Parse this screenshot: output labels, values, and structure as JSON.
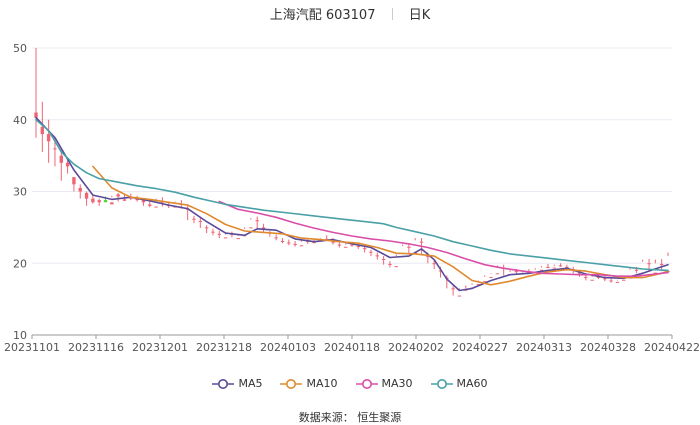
{
  "header": {
    "title": "上海汽配 603107",
    "period": "日K"
  },
  "source_label": "数据来源：  恒生聚源",
  "chart_data": {
    "type": "candlestick",
    "x_ticks": [
      "20231101",
      "20231116",
      "20231201",
      "20231218",
      "20240103",
      "20240118",
      "20240202",
      "20240227",
      "20240313",
      "20240328",
      "20240422"
    ],
    "y_ticks": [
      "10",
      "20",
      "30",
      "40",
      "50"
    ],
    "ylim": [
      10,
      50
    ],
    "grid": true,
    "legend_position": "bottom",
    "up_color": "#f06474",
    "down_color": "#57d03a",
    "candles": [
      [
        40.3,
        50.0,
        41.0,
        37.5
      ],
      [
        38.0,
        42.5,
        39.0,
        35.5
      ],
      [
        37.0,
        40.0,
        38.0,
        34.0
      ],
      [
        36.0,
        37.5,
        36.0,
        33.5
      ],
      [
        34.0,
        36.0,
        35.0,
        31.5
      ],
      [
        33.5,
        34.5,
        34.0,
        32.5
      ],
      [
        31.0,
        32.0,
        32.0,
        30.0
      ],
      [
        30.0,
        31.0,
        30.5,
        29.0
      ],
      [
        29.0,
        30.0,
        29.8,
        28.0
      ],
      [
        28.5,
        29.5,
        29.0,
        28.3
      ],
      [
        28.5,
        29.0,
        28.8,
        28.0
      ],
      [
        28.8,
        29.3,
        28.5,
        28.6
      ],
      [
        28.2,
        29.4,
        28.5,
        29.2
      ],
      [
        29.3,
        29.8,
        29.6,
        28.6
      ],
      [
        28.7,
        29.5,
        28.9,
        28.7
      ],
      [
        29.0,
        29.7,
        29.2,
        28.8
      ],
      [
        28.8,
        29.4,
        29.0,
        28.6
      ],
      [
        28.5,
        29.1,
        28.8,
        28.0
      ],
      [
        28.0,
        28.8,
        28.2,
        27.8
      ],
      [
        27.8,
        29.0,
        27.9,
        28.8
      ],
      [
        28.6,
        29.2,
        28.6,
        27.9
      ],
      [
        28.0,
        28.5,
        28.1,
        27.7
      ],
      [
        27.8,
        28.6,
        27.9,
        28.5
      ],
      [
        28.3,
        28.8,
        28.3,
        27.6
      ],
      [
        27.5,
        28.0,
        27.6,
        26.0
      ],
      [
        26.2,
        26.6,
        26.2,
        25.6
      ],
      [
        25.8,
        26.3,
        25.9,
        24.9
      ],
      [
        24.9,
        25.3,
        25.0,
        24.2
      ],
      [
        24.3,
        24.8,
        24.4,
        23.9
      ],
      [
        24.0,
        24.5,
        24.1,
        23.5
      ],
      [
        23.5,
        24.2,
        23.6,
        24.0
      ],
      [
        24.0,
        24.4,
        24.1,
        23.6
      ],
      [
        23.4,
        23.9,
        23.5,
        23.8
      ],
      [
        23.8,
        25.0,
        23.9,
        24.8
      ],
      [
        24.9,
        26.3,
        25.0,
        26.1
      ],
      [
        26.0,
        26.5,
        26.0,
        24.9
      ],
      [
        24.8,
        25.5,
        25.0,
        24.3
      ],
      [
        24.2,
        24.5,
        24.3,
        23.7
      ],
      [
        23.6,
        24.0,
        23.6,
        23.2
      ],
      [
        23.0,
        23.5,
        23.1,
        22.8
      ],
      [
        22.8,
        23.3,
        22.9,
        22.5
      ],
      [
        22.6,
        23.1,
        22.7,
        22.3
      ],
      [
        22.4,
        23.3,
        22.5,
        23.0
      ],
      [
        23.0,
        23.5,
        23.1,
        22.7
      ],
      [
        22.8,
        23.3,
        23.0,
        22.9
      ],
      [
        23.0,
        23.5,
        23.2,
        23.4
      ],
      [
        23.3,
        23.9,
        23.4,
        23.1
      ],
      [
        23.0,
        23.5,
        23.0,
        22.6
      ],
      [
        22.5,
        23.0,
        22.6,
        22.2
      ],
      [
        22.2,
        22.8,
        22.3,
        22.6
      ],
      [
        22.5,
        23.0,
        22.6,
        22.3
      ],
      [
        22.3,
        22.8,
        22.4,
        22.0
      ],
      [
        22.0,
        22.5,
        22.1,
        21.5
      ],
      [
        21.5,
        21.9,
        21.6,
        21.0
      ],
      [
        21.0,
        21.5,
        21.1,
        20.5
      ],
      [
        20.5,
        21.0,
        20.6,
        19.8
      ],
      [
        19.8,
        20.3,
        19.9,
        19.4
      ],
      [
        19.5,
        21.2,
        19.6,
        21.0
      ],
      [
        20.9,
        22.6,
        21.0,
        22.4
      ],
      [
        22.3,
        22.8,
        22.3,
        21.2
      ],
      [
        21.4,
        23.5,
        21.5,
        23.2
      ],
      [
        23.0,
        23.5,
        23.0,
        21.2
      ],
      [
        21.0,
        21.5,
        21.0,
        20.0
      ],
      [
        20.0,
        20.5,
        20.0,
        19.2
      ],
      [
        19.0,
        19.5,
        19.0,
        18.0
      ],
      [
        18.0,
        18.3,
        18.0,
        16.5
      ],
      [
        16.4,
        16.8,
        16.5,
        15.5
      ],
      [
        15.4,
        16.5,
        15.5,
        16.3
      ],
      [
        16.2,
        16.9,
        16.3,
        16.5
      ],
      [
        16.6,
        17.2,
        16.6,
        17.0
      ],
      [
        17.0,
        17.6,
        17.1,
        17.4
      ],
      [
        17.4,
        18.3,
        17.5,
        18.1
      ],
      [
        18.0,
        18.6,
        18.1,
        18.5
      ],
      [
        18.5,
        19.7,
        18.6,
        19.5
      ],
      [
        19.4,
        19.8,
        19.4,
        18.3
      ],
      [
        18.4,
        19.0,
        18.5,
        18.8
      ],
      [
        18.8,
        19.2,
        18.9,
        18.4
      ],
      [
        18.5,
        19.0,
        18.6,
        18.7
      ],
      [
        18.7,
        19.2,
        18.8,
        18.5
      ],
      [
        18.5,
        19.3,
        18.5,
        19.1
      ],
      [
        19.0,
        19.6,
        19.1,
        19.4
      ],
      [
        19.4,
        19.9,
        19.5,
        19.3
      ],
      [
        19.3,
        19.8,
        19.4,
        19.6
      ],
      [
        19.6,
        20.0,
        19.7,
        19.5
      ],
      [
        19.4,
        19.8,
        19.5,
        19.1
      ],
      [
        19.1,
        19.5,
        19.2,
        18.6
      ],
      [
        18.6,
        19.0,
        18.7,
        18.1
      ],
      [
        18.0,
        18.4,
        18.1,
        17.6
      ],
      [
        17.6,
        18.3,
        17.7,
        18.1
      ],
      [
        18.1,
        18.5,
        18.1,
        17.8
      ],
      [
        17.8,
        18.2,
        17.9,
        17.5
      ],
      [
        17.5,
        17.9,
        17.6,
        17.3
      ],
      [
        17.3,
        17.7,
        17.4,
        17.6
      ],
      [
        17.6,
        18.2,
        17.7,
        17.9
      ],
      [
        17.9,
        19.3,
        18.0,
        19.1
      ],
      [
        19.0,
        19.5,
        19.1,
        18.6
      ],
      [
        18.6,
        20.5,
        18.7,
        20.2
      ],
      [
        20.0,
        20.6,
        20.0,
        18.8
      ],
      [
        18.6,
        20.5,
        18.7,
        20.0
      ],
      [
        19.8,
        20.6,
        19.9,
        18.9
      ],
      [
        18.8,
        21.5,
        18.9,
        21.0
      ]
    ],
    "series": [
      {
        "name": "MA5",
        "color": "#5a4b9a",
        "values": [
          [
            0,
            40.3
          ],
          [
            3,
            37.5
          ],
          [
            6,
            33.0
          ],
          [
            9,
            29.5
          ],
          [
            12,
            28.9
          ],
          [
            15,
            29.2
          ],
          [
            18,
            28.7
          ],
          [
            21,
            28.1
          ],
          [
            24,
            27.6
          ],
          [
            27,
            25.8
          ],
          [
            30,
            24.2
          ],
          [
            33,
            23.9
          ],
          [
            35,
            24.8
          ],
          [
            38,
            24.6
          ],
          [
            41,
            23.4
          ],
          [
            44,
            23.0
          ],
          [
            47,
            23.3
          ],
          [
            50,
            22.7
          ],
          [
            53,
            22.2
          ],
          [
            56,
            20.8
          ],
          [
            59,
            21.0
          ],
          [
            61,
            22.0
          ],
          [
            63,
            20.5
          ],
          [
            65,
            17.8
          ],
          [
            67,
            16.2
          ],
          [
            69,
            16.5
          ],
          [
            72,
            17.6
          ],
          [
            75,
            18.4
          ],
          [
            78,
            18.6
          ],
          [
            81,
            19.0
          ],
          [
            84,
            19.3
          ],
          [
            87,
            18.5
          ],
          [
            90,
            18.0
          ],
          [
            93,
            17.9
          ],
          [
            96,
            18.6
          ],
          [
            99,
            19.5
          ],
          [
            100,
            19.8
          ]
        ]
      },
      {
        "name": "MA10",
        "color": "#e08a2e",
        "values": [
          [
            9,
            33.5
          ],
          [
            12,
            30.5
          ],
          [
            15,
            29.2
          ],
          [
            18,
            28.9
          ],
          [
            21,
            28.5
          ],
          [
            24,
            28.1
          ],
          [
            27,
            26.9
          ],
          [
            30,
            25.4
          ],
          [
            33,
            24.5
          ],
          [
            36,
            24.3
          ],
          [
            39,
            24.1
          ],
          [
            42,
            23.5
          ],
          [
            45,
            23.3
          ],
          [
            48,
            23.0
          ],
          [
            51,
            22.8
          ],
          [
            54,
            22.2
          ],
          [
            57,
            21.4
          ],
          [
            60,
            21.3
          ],
          [
            63,
            21.0
          ],
          [
            66,
            19.5
          ],
          [
            69,
            17.6
          ],
          [
            72,
            17.0
          ],
          [
            75,
            17.5
          ],
          [
            78,
            18.2
          ],
          [
            81,
            18.8
          ],
          [
            84,
            19.1
          ],
          [
            87,
            18.9
          ],
          [
            90,
            18.4
          ],
          [
            93,
            18.0
          ],
          [
            96,
            18.0
          ],
          [
            99,
            18.6
          ],
          [
            100,
            18.9
          ]
        ]
      },
      {
        "name": "MA30",
        "color": "#d94fa8",
        "values": [
          [
            29,
            28.6
          ],
          [
            32,
            27.5
          ],
          [
            35,
            27.0
          ],
          [
            38,
            26.4
          ],
          [
            41,
            25.6
          ],
          [
            44,
            24.9
          ],
          [
            47,
            24.3
          ],
          [
            50,
            23.8
          ],
          [
            53,
            23.4
          ],
          [
            56,
            23.1
          ],
          [
            59,
            22.7
          ],
          [
            62,
            22.2
          ],
          [
            65,
            21.5
          ],
          [
            68,
            20.6
          ],
          [
            71,
            19.8
          ],
          [
            74,
            19.3
          ],
          [
            77,
            18.9
          ],
          [
            80,
            18.6
          ],
          [
            83,
            18.5
          ],
          [
            86,
            18.4
          ],
          [
            89,
            18.4
          ],
          [
            92,
            18.2
          ],
          [
            95,
            18.2
          ],
          [
            98,
            18.5
          ],
          [
            100,
            18.7
          ]
        ]
      },
      {
        "name": "MA60",
        "color": "#4aa0a7",
        "values": [
          [
            0,
            40.0
          ],
          [
            2,
            38.5
          ],
          [
            4,
            35.5
          ],
          [
            6,
            33.8
          ],
          [
            8,
            32.6
          ],
          [
            10,
            31.8
          ],
          [
            13,
            31.3
          ],
          [
            16,
            30.8
          ],
          [
            19,
            30.4
          ],
          [
            22,
            29.9
          ],
          [
            25,
            29.2
          ],
          [
            28,
            28.6
          ],
          [
            30,
            28.2
          ],
          [
            33,
            27.8
          ],
          [
            36,
            27.4
          ],
          [
            40,
            27.0
          ],
          [
            44,
            26.6
          ],
          [
            48,
            26.2
          ],
          [
            52,
            25.8
          ],
          [
            55,
            25.5
          ],
          [
            57,
            25.0
          ],
          [
            60,
            24.4
          ],
          [
            63,
            23.8
          ],
          [
            66,
            23.0
          ],
          [
            69,
            22.4
          ],
          [
            72,
            21.8
          ],
          [
            75,
            21.3
          ],
          [
            78,
            21.0
          ],
          [
            81,
            20.7
          ],
          [
            84,
            20.4
          ],
          [
            87,
            20.1
          ],
          [
            90,
            19.8
          ],
          [
            93,
            19.5
          ],
          [
            96,
            19.2
          ],
          [
            100,
            19.0
          ]
        ]
      }
    ]
  }
}
